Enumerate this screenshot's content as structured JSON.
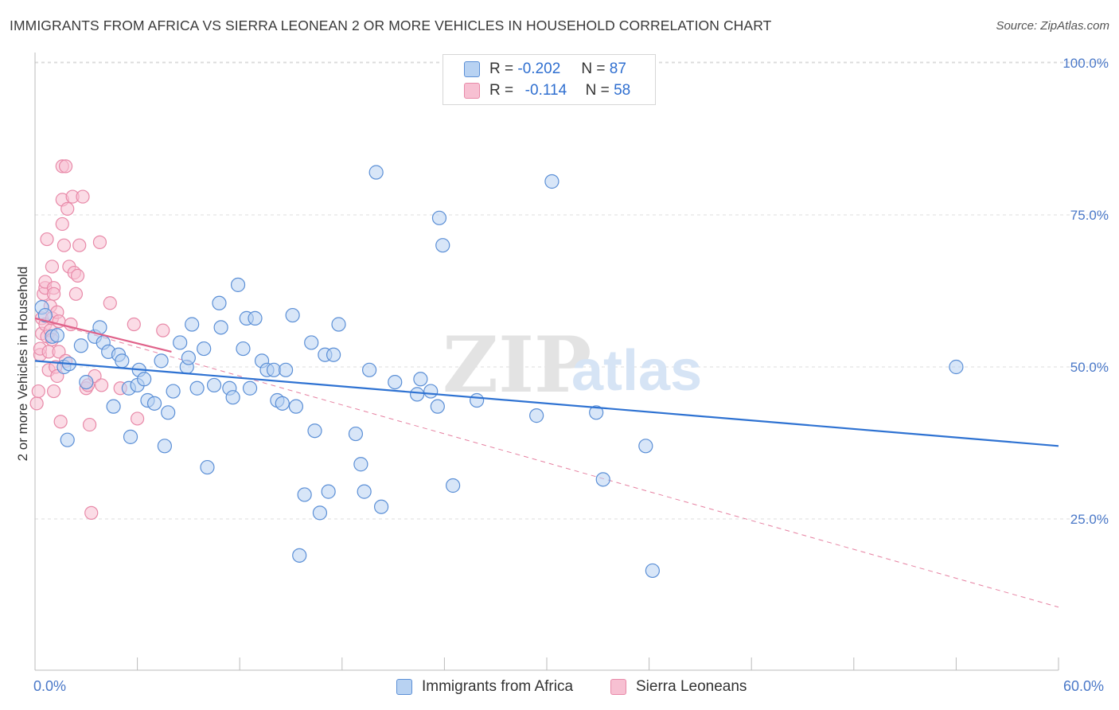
{
  "header": {
    "title": "IMMIGRANTS FROM AFRICA VS SIERRA LEONEAN 2 OR MORE VEHICLES IN HOUSEHOLD CORRELATION CHART",
    "source": "Source: ZipAtlas.com"
  },
  "legend": {
    "rows": [
      {
        "r_label": "R =",
        "r_value": "-0.202",
        "n_label": "N =",
        "n_value": "87"
      },
      {
        "r_label": "R =",
        "r_value": "-0.114",
        "n_label": "N =",
        "n_value": "58"
      }
    ]
  },
  "watermark": {
    "zip": "ZIP",
    "atlas": "atlas"
  },
  "colors": {
    "blue_fill": "#b8d2f2",
    "blue_edge": "#5b8fd6",
    "blue_line": "#2e72d2",
    "pink_fill": "#f7c0d2",
    "pink_edge": "#e889a8",
    "pink_line": "#e0628a",
    "grid": "#dcdcdc",
    "tick_text": "#4a78c8"
  },
  "chart_data": {
    "type": "scatter",
    "title": "IMMIGRANTS FROM AFRICA VS SIERRA LEONEAN 2 OR MORE VEHICLES IN HOUSEHOLD CORRELATION CHART",
    "xlabel": "",
    "ylabel": "2 or more Vehicles in Household",
    "xlim": [
      0,
      60
    ],
    "ylim": [
      0,
      105
    ],
    "x_tick_labels": {
      "min": "0.0%",
      "max": "60.0%"
    },
    "y_ticks": [
      25,
      50,
      75,
      100
    ],
    "y_tick_labels": [
      "25.0%",
      "50.0%",
      "75.0%",
      "100.0%"
    ],
    "grid": true,
    "legend_position": "top-center",
    "series": [
      {
        "name": "Immigrants from Africa",
        "color": "#5b8fd6",
        "trend": {
          "x": [
            0,
            60
          ],
          "y": [
            51.0,
            37.0
          ],
          "style": "solid"
        },
        "points": [
          [
            0.4,
            59.8
          ],
          [
            0.6,
            58.5
          ],
          [
            1.0,
            55.0
          ],
          [
            1.3,
            55.2
          ],
          [
            1.7,
            50.0
          ],
          [
            2.0,
            50.5
          ],
          [
            1.9,
            38.0
          ],
          [
            2.7,
            53.5
          ],
          [
            3.0,
            47.5
          ],
          [
            3.5,
            55.0
          ],
          [
            3.8,
            56.5
          ],
          [
            4.0,
            54.0
          ],
          [
            4.3,
            52.5
          ],
          [
            4.6,
            43.5
          ],
          [
            4.9,
            52.0
          ],
          [
            5.1,
            51.0
          ],
          [
            5.5,
            46.5
          ],
          [
            5.6,
            38.5
          ],
          [
            6.0,
            47.0
          ],
          [
            6.1,
            49.5
          ],
          [
            6.4,
            48.0
          ],
          [
            6.6,
            44.5
          ],
          [
            7.0,
            44.0
          ],
          [
            7.4,
            51.0
          ],
          [
            7.6,
            37.0
          ],
          [
            7.8,
            42.5
          ],
          [
            8.1,
            46.0
          ],
          [
            8.5,
            54.0
          ],
          [
            8.9,
            50.0
          ],
          [
            9.0,
            51.5
          ],
          [
            9.2,
            57.0
          ],
          [
            9.5,
            46.5
          ],
          [
            9.9,
            53.0
          ],
          [
            10.1,
            33.5
          ],
          [
            10.5,
            47.0
          ],
          [
            10.8,
            60.5
          ],
          [
            10.9,
            56.5
          ],
          [
            11.4,
            46.5
          ],
          [
            11.6,
            45.0
          ],
          [
            11.9,
            63.5
          ],
          [
            12.2,
            53.0
          ],
          [
            12.4,
            58.0
          ],
          [
            12.6,
            46.5
          ],
          [
            12.9,
            58.0
          ],
          [
            13.3,
            51.0
          ],
          [
            13.6,
            49.5
          ],
          [
            14.0,
            49.5
          ],
          [
            14.2,
            44.5
          ],
          [
            14.5,
            44.0
          ],
          [
            14.7,
            49.5
          ],
          [
            15.1,
            58.5
          ],
          [
            15.3,
            43.5
          ],
          [
            15.5,
            19.0
          ],
          [
            15.8,
            29.0
          ],
          [
            16.2,
            54.0
          ],
          [
            16.4,
            39.5
          ],
          [
            16.7,
            26.0
          ],
          [
            17.0,
            52.0
          ],
          [
            17.2,
            29.5
          ],
          [
            17.5,
            52.0
          ],
          [
            17.8,
            57.0
          ],
          [
            18.8,
            39.0
          ],
          [
            19.1,
            34.0
          ],
          [
            19.3,
            29.5
          ],
          [
            19.6,
            49.5
          ],
          [
            20.0,
            82.0
          ],
          [
            20.3,
            27.0
          ],
          [
            21.1,
            47.5
          ],
          [
            22.4,
            45.5
          ],
          [
            22.6,
            48.0
          ],
          [
            23.2,
            46.0
          ],
          [
            23.6,
            43.5
          ],
          [
            23.7,
            74.5
          ],
          [
            23.9,
            70.0
          ],
          [
            24.5,
            30.5
          ],
          [
            25.9,
            44.5
          ],
          [
            29.4,
            42.0
          ],
          [
            30.3,
            80.5
          ],
          [
            32.9,
            42.5
          ],
          [
            33.3,
            31.5
          ],
          [
            35.8,
            37.0
          ],
          [
            36.2,
            16.5
          ],
          [
            54.0,
            50.0
          ]
        ]
      },
      {
        "name": "Sierra Leoneans",
        "color": "#e889a8",
        "trend": {
          "x": [
            0,
            8
          ],
          "y": [
            58.0,
            52.5
          ],
          "style": "solid"
        },
        "trend_extended": {
          "x": [
            0,
            60
          ],
          "y": [
            58.0,
            10.5
          ],
          "style": "dashed"
        },
        "points": [
          [
            0.1,
            44.0
          ],
          [
            0.2,
            46.0
          ],
          [
            0.3,
            52.0
          ],
          [
            0.3,
            53.0
          ],
          [
            0.4,
            55.5
          ],
          [
            0.4,
            58.0
          ],
          [
            0.5,
            62.0
          ],
          [
            0.6,
            63.0
          ],
          [
            0.6,
            64.0
          ],
          [
            0.6,
            57.0
          ],
          [
            0.7,
            71.0
          ],
          [
            0.7,
            55.0
          ],
          [
            0.8,
            52.5
          ],
          [
            0.8,
            49.5
          ],
          [
            0.9,
            56.0
          ],
          [
            0.9,
            60.0
          ],
          [
            1.0,
            66.5
          ],
          [
            1.0,
            58.0
          ],
          [
            1.0,
            54.5
          ],
          [
            1.1,
            63.0
          ],
          [
            1.1,
            62.0
          ],
          [
            1.1,
            46.0
          ],
          [
            1.2,
            50.0
          ],
          [
            1.3,
            48.5
          ],
          [
            1.3,
            59.0
          ],
          [
            1.4,
            52.5
          ],
          [
            1.4,
            57.5
          ],
          [
            1.5,
            41.0
          ],
          [
            1.6,
            83.0
          ],
          [
            1.6,
            77.5
          ],
          [
            1.6,
            73.5
          ],
          [
            1.7,
            70.0
          ],
          [
            1.8,
            83.0
          ],
          [
            1.8,
            51.0
          ],
          [
            1.9,
            76.0
          ],
          [
            2.0,
            66.5
          ],
          [
            2.1,
            57.0
          ],
          [
            2.2,
            78.0
          ],
          [
            2.3,
            65.5
          ],
          [
            2.4,
            62.0
          ],
          [
            2.5,
            65.0
          ],
          [
            2.6,
            70.0
          ],
          [
            2.8,
            78.0
          ],
          [
            3.0,
            46.5
          ],
          [
            3.1,
            47.0
          ],
          [
            3.2,
            40.5
          ],
          [
            3.3,
            26.0
          ],
          [
            3.5,
            48.5
          ],
          [
            3.8,
            70.5
          ],
          [
            3.9,
            47.0
          ],
          [
            4.4,
            60.5
          ],
          [
            5.0,
            46.5
          ],
          [
            5.8,
            57.0
          ],
          [
            6.0,
            41.5
          ],
          [
            7.5,
            56.0
          ]
        ]
      }
    ]
  },
  "bottom_legend": {
    "items": [
      {
        "label": "Immigrants from Africa"
      },
      {
        "label": "Sierra Leoneans"
      }
    ]
  }
}
